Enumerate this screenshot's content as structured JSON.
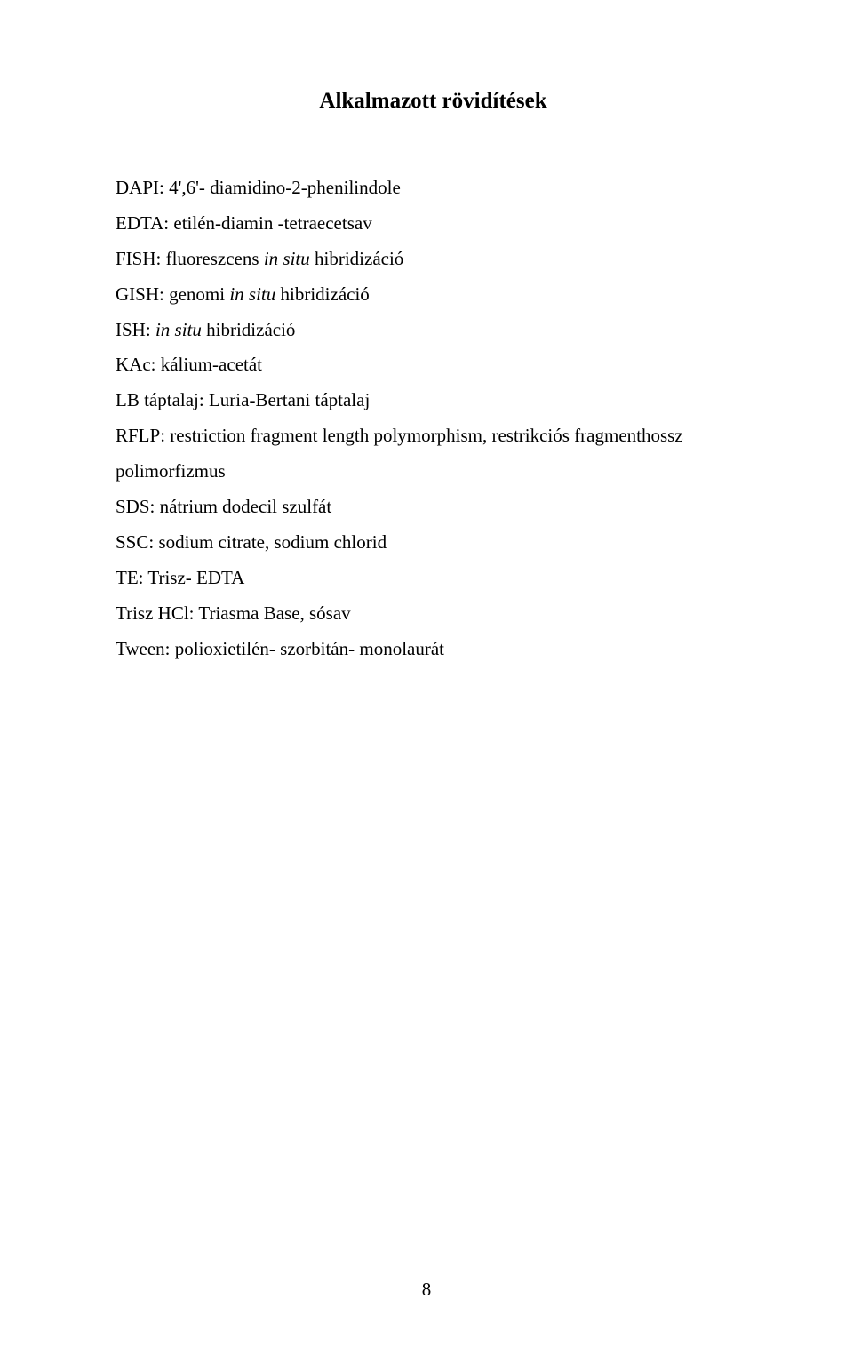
{
  "title": "Alkalmazott rövidítések",
  "entries": [
    {
      "prefix": "DAPI: 4',6'- diamidino-2-phenilindole",
      "italic": ""
    },
    {
      "prefix": "EDTA: etilén-diamin -tetraecetsav",
      "italic": ""
    },
    {
      "prefix": "FISH: fluoreszcens ",
      "italic": "in situ",
      "suffix": " hibridizáció"
    },
    {
      "prefix": "GISH: genomi ",
      "italic": "in situ",
      "suffix": " hibridizáció"
    },
    {
      "prefix": "ISH: ",
      "italic": "in situ",
      "suffix": " hibridizáció"
    },
    {
      "prefix": "KAc: kálium-acetát",
      "italic": ""
    },
    {
      "prefix": "LB táptalaj: Luria-Bertani táptalaj",
      "italic": ""
    },
    {
      "prefix": "RFLP: restriction fragment length polymorphism, restrikciós fragmenthossz polimorfizmus",
      "italic": ""
    },
    {
      "prefix": "SDS: nátrium dodecil szulfát",
      "italic": ""
    },
    {
      "prefix": "SSC: sodium citrate, sodium chlorid",
      "italic": ""
    },
    {
      "prefix": "TE: Trisz- EDTA",
      "italic": ""
    },
    {
      "prefix": "Trisz HCl: Triasma Base, sósav",
      "italic": ""
    },
    {
      "prefix": "Tween: polioxietilén- szorbitán- monolaurát",
      "italic": ""
    }
  ],
  "page_number": "8"
}
